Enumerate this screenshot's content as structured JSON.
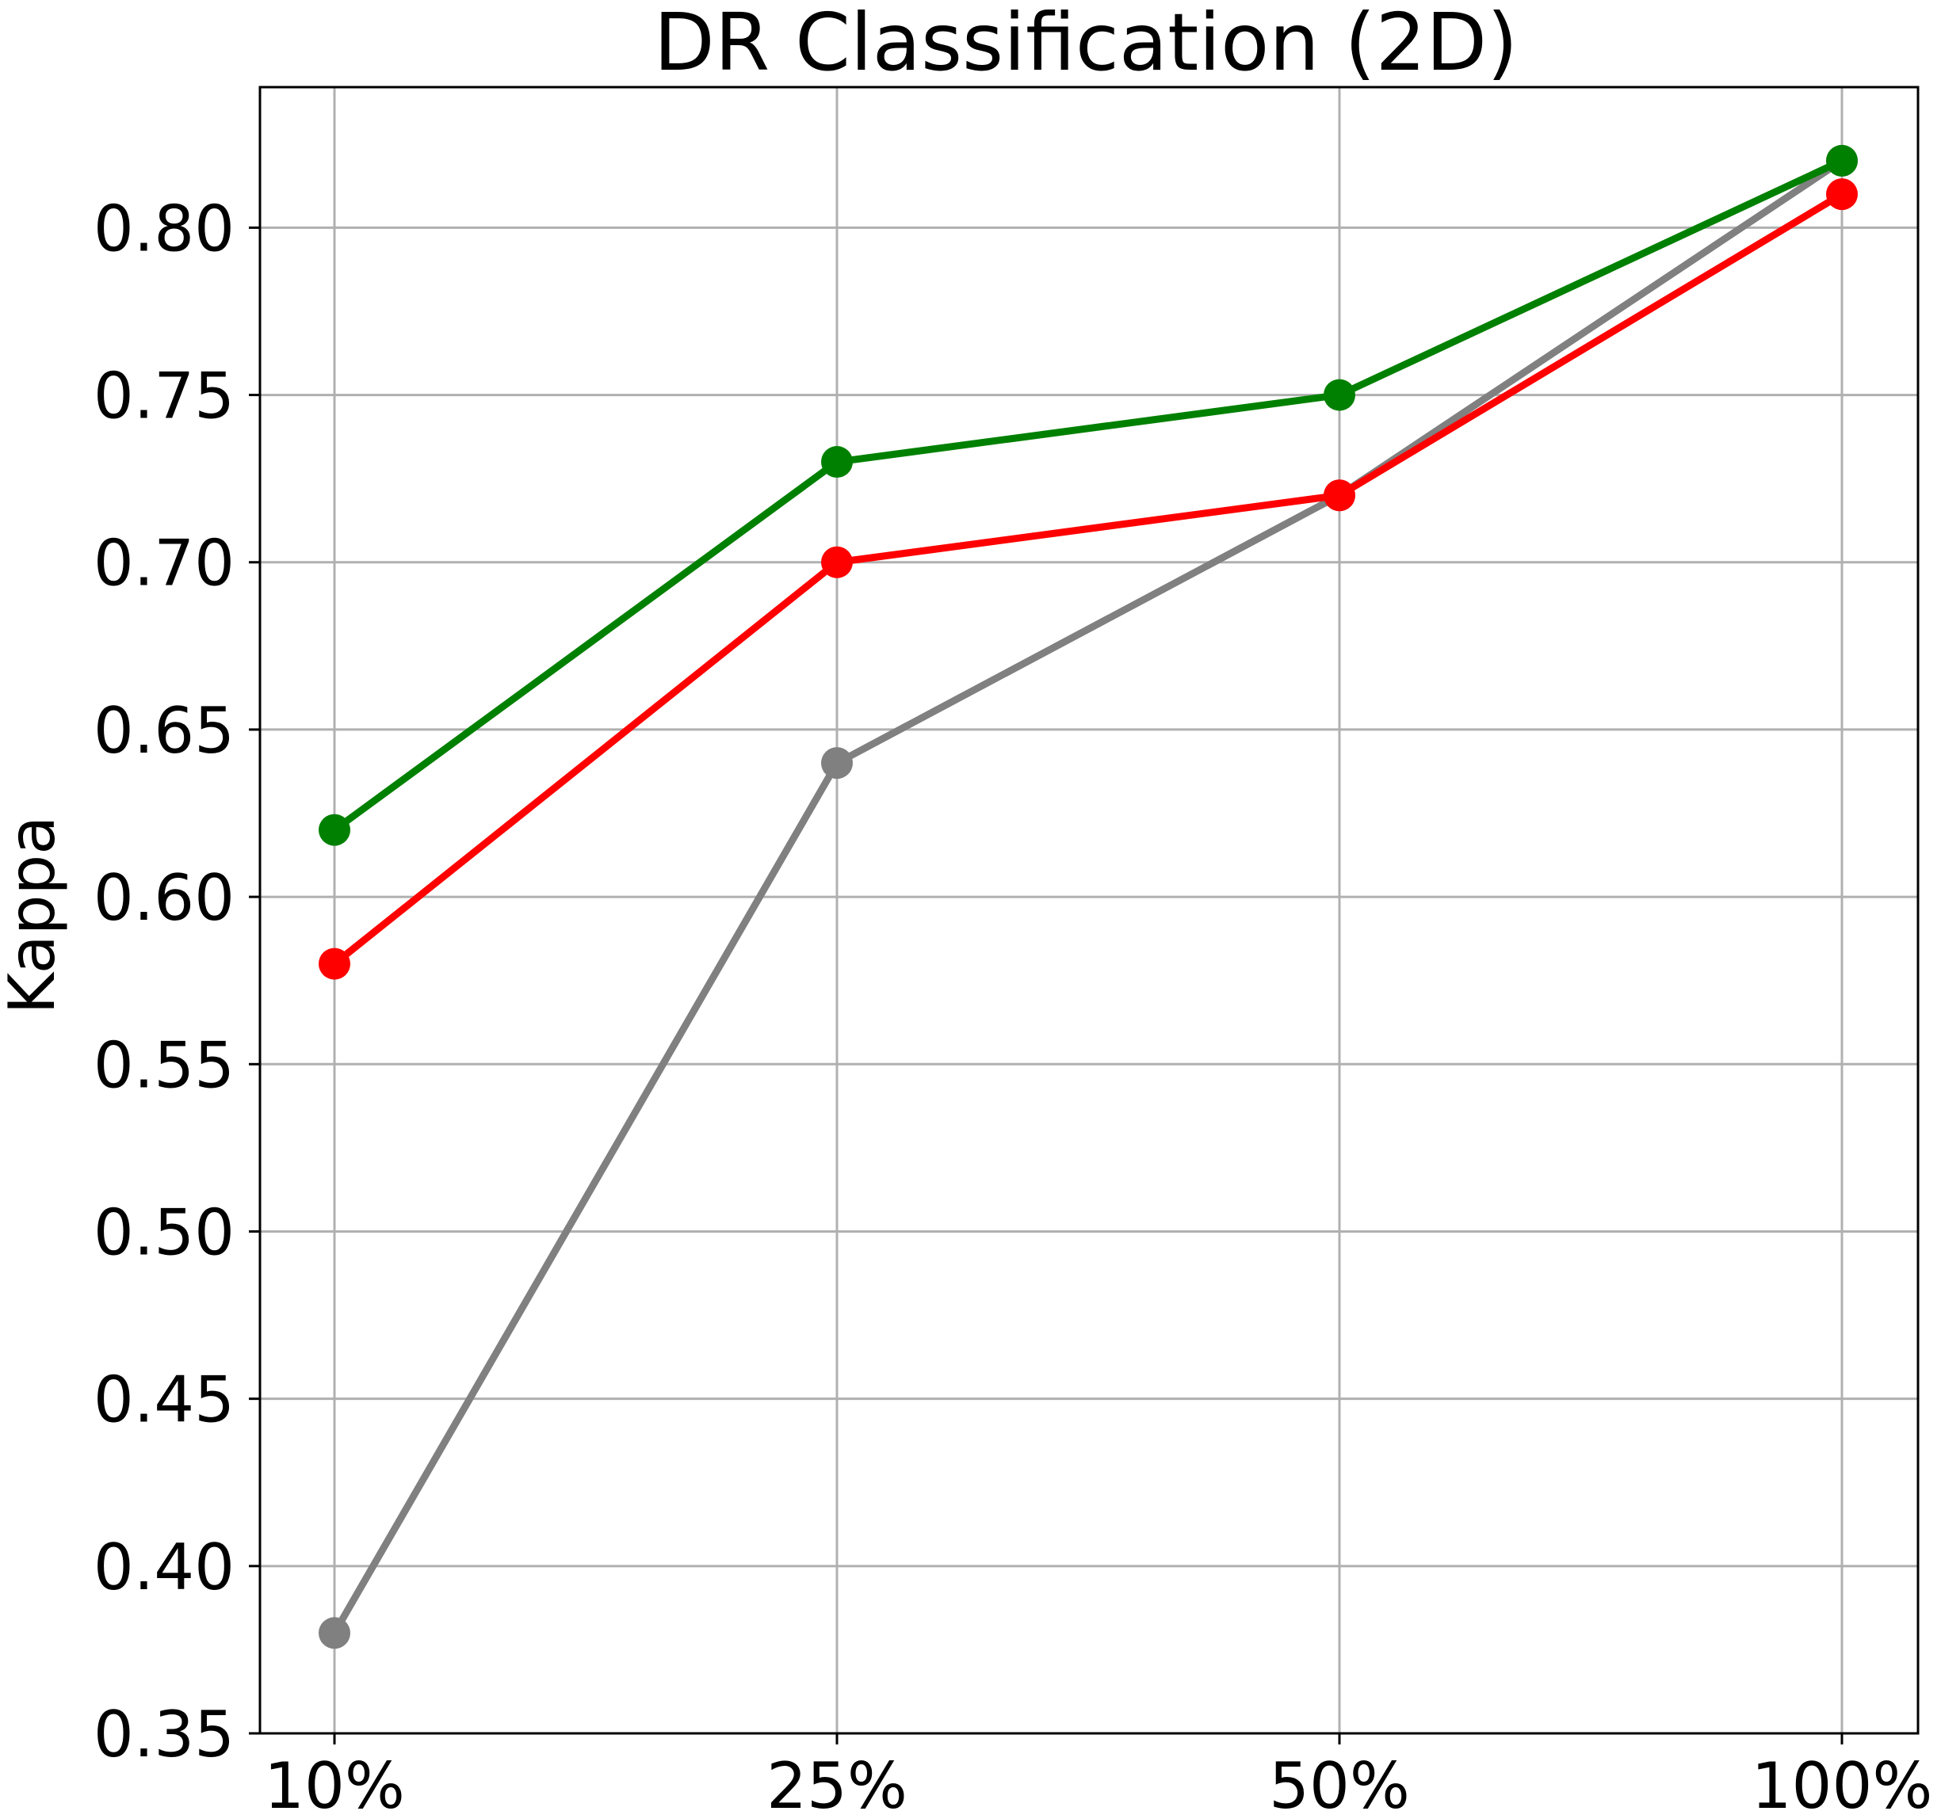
{
  "chart_data": {
    "type": "line",
    "title": "DR Classification (2D)",
    "xlabel": "",
    "ylabel": "Kappa",
    "categories": [
      "10%",
      "25%",
      "50%",
      "100%"
    ],
    "ylim": [
      0.35,
      0.842
    ],
    "yticks": [
      0.35,
      0.4,
      0.45,
      0.5,
      0.55,
      0.6,
      0.65,
      0.7,
      0.75,
      0.8
    ],
    "ytick_labels": [
      "0.35",
      "0.40",
      "0.45",
      "0.50",
      "0.55",
      "0.60",
      "0.65",
      "0.70",
      "0.75",
      "0.80"
    ],
    "grid": true,
    "legend": "none",
    "series": [
      {
        "color": "#808080",
        "values": [
          0.38,
          0.64,
          0.72,
          0.82
        ]
      },
      {
        "color": "#ff0000",
        "values": [
          0.58,
          0.7,
          0.72,
          0.81
        ]
      },
      {
        "color": "#008000",
        "values": [
          0.62,
          0.73,
          0.75,
          0.82
        ]
      }
    ]
  }
}
